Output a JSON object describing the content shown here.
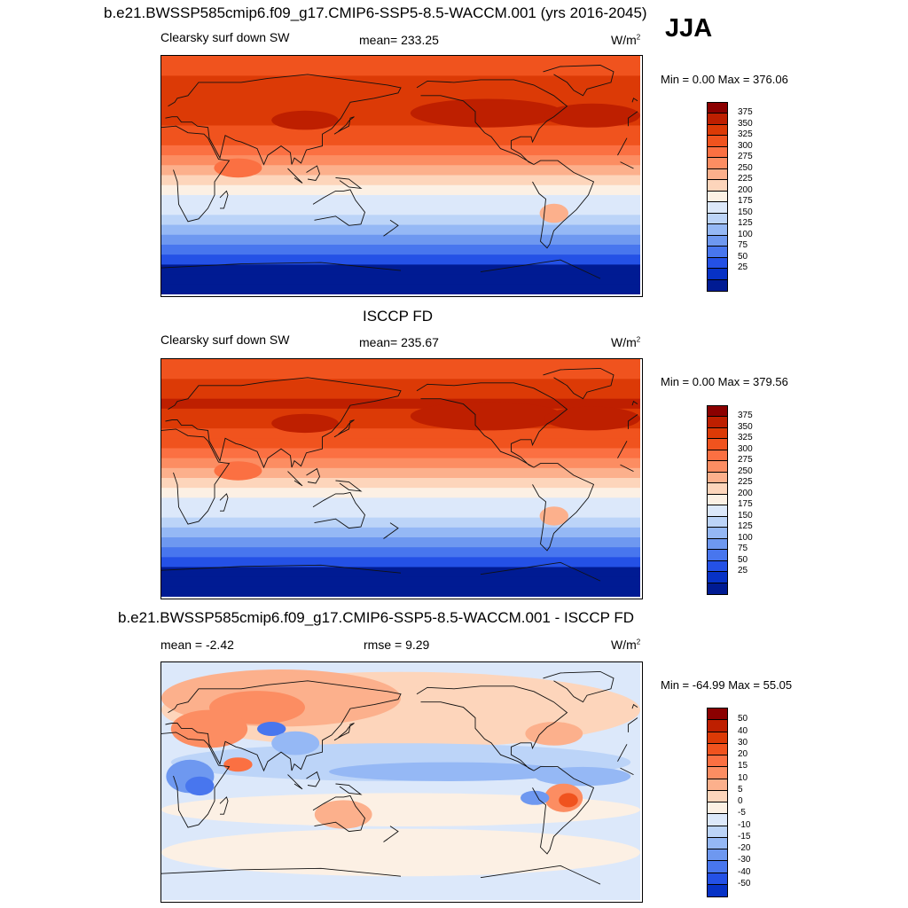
{
  "season": "JJA",
  "panel1": {
    "title": "b.e21.BWSSP585cmip6.f09_g17.CMIP6-SSP5-8.5-WACCM.001 (yrs 2016-2045)",
    "variable": "Clearsky surf down SW",
    "mean_text": "mean= 233.25",
    "units": "W/m",
    "units_sup": "2",
    "minmax": "Min =   0.00 Max = 376.06"
  },
  "panel2": {
    "title": "ISCCP FD",
    "variable": "Clearsky surf down SW",
    "mean_text": "mean= 235.67",
    "units": "W/m",
    "units_sup": "2",
    "minmax": "Min =   0.00 Max = 379.56"
  },
  "panel3": {
    "title": "b.e21.BWSSP585cmip6.f09_g17.CMIP6-SSP5-8.5-WACCM.001 - ISCCP FD",
    "mean_text": "mean =  -2.42",
    "rmse_text": "rmse =   9.29",
    "units": "W/m",
    "units_sup": "2",
    "minmax": "Min = -64.99 Max =  55.05"
  },
  "chart_data": [
    {
      "type": "heatmap",
      "title": "b.e21.BWSSP585cmip6.f09_g17.CMIP6-SSP5-8.5-WACCM.001 (yrs 2016-2045)",
      "variable": "Clearsky surf down SW",
      "season": "JJA",
      "mean": 233.25,
      "min": 0.0,
      "max": 376.06,
      "units": "W/m2",
      "lat_band_values_north_to_south": [
        300,
        310,
        325,
        340,
        345,
        340,
        330,
        320,
        300,
        275,
        250,
        230,
        210,
        190,
        170,
        150,
        125,
        100,
        75,
        50,
        30,
        20,
        15,
        10
      ],
      "colorbar": {
        "labels": [
          "375",
          "350",
          "325",
          "300",
          "275",
          "250",
          "225",
          "200",
          "175",
          "150",
          "125",
          "100",
          "75",
          "50",
          "25"
        ],
        "colors": [
          "#8b0000",
          "#be1f00",
          "#dc3a06",
          "#f0531e",
          "#fb7042",
          "#fc8d62",
          "#fcb08c",
          "#fdd5bb",
          "#fcf0e4",
          "#dce8fa",
          "#bcd4f8",
          "#95b8f5",
          "#6e98f0",
          "#4876ee",
          "#2451e6",
          "#0732c6",
          "#001b93"
        ]
      }
    },
    {
      "type": "heatmap",
      "title": "ISCCP FD",
      "variable": "Clearsky surf down SW",
      "season": "JJA",
      "mean": 235.67,
      "min": 0.0,
      "max": 379.56,
      "units": "W/m2",
      "lat_band_values_north_to_south": [
        305,
        315,
        330,
        345,
        350,
        345,
        335,
        320,
        300,
        275,
        250,
        230,
        210,
        190,
        170,
        150,
        125,
        100,
        75,
        50,
        30,
        20,
        15,
        10
      ],
      "colorbar": {
        "labels": [
          "375",
          "350",
          "325",
          "300",
          "275",
          "250",
          "225",
          "200",
          "175",
          "150",
          "125",
          "100",
          "75",
          "50",
          "25"
        ],
        "colors": [
          "#8b0000",
          "#be1f00",
          "#dc3a06",
          "#f0531e",
          "#fb7042",
          "#fc8d62",
          "#fcb08c",
          "#fdd5bb",
          "#fcf0e4",
          "#dce8fa",
          "#bcd4f8",
          "#95b8f5",
          "#6e98f0",
          "#4876ee",
          "#2451e6",
          "#0732c6",
          "#001b93"
        ]
      }
    },
    {
      "type": "heatmap",
      "title": "b.e21.BWSSP585cmip6.f09_g17.CMIP6-SSP5-8.5-WACCM.001 - ISCCP FD",
      "season": "JJA",
      "mean": -2.42,
      "rmse": 9.29,
      "min": -64.99,
      "max": 55.05,
      "units": "W/m2",
      "colorbar": {
        "labels": [
          "50",
          "40",
          "30",
          "20",
          "15",
          "10",
          "5",
          "0",
          "-5",
          "-10",
          "-15",
          "-20",
          "-30",
          "-40",
          "-50"
        ],
        "colors": [
          "#8b0000",
          "#be1f00",
          "#dc3a06",
          "#f0531e",
          "#fb7042",
          "#fc8d62",
          "#fcb08c",
          "#fdd5bb",
          "#fcf0e4",
          "#dce8fa",
          "#bcd4f8",
          "#95b8f5",
          "#6e98f0",
          "#4876ee",
          "#2451e6",
          "#0732c6"
        ]
      }
    }
  ]
}
